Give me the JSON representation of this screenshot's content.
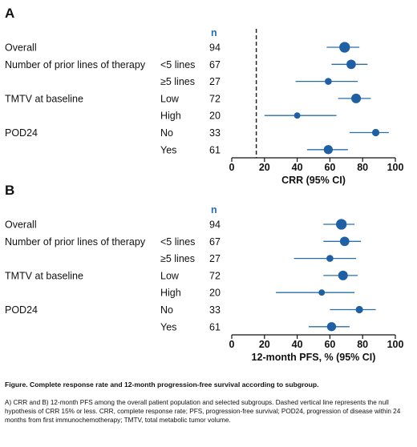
{
  "chart_data": [
    {
      "type": "forest",
      "panel": "A",
      "n_header": "n",
      "rows": [
        {
          "label": "Overall",
          "sublabel": "",
          "n": "94",
          "estimate": 69,
          "lo": 58,
          "hi": 78
        },
        {
          "label": "Number of prior lines of therapy",
          "sublabel": "<5 lines",
          "n": "67",
          "estimate": 73,
          "lo": 61,
          "hi": 83
        },
        {
          "label": "",
          "sublabel": "≥5 lines",
          "n": "27",
          "estimate": 59,
          "lo": 39,
          "hi": 77
        },
        {
          "label": "TMTV at baseline",
          "sublabel": "Low",
          "n": "72",
          "estimate": 76,
          "lo": 65,
          "hi": 85
        },
        {
          "label": "",
          "sublabel": "High",
          "n": "20",
          "estimate": 40,
          "lo": 20,
          "hi": 64
        },
        {
          "label": "POD24",
          "sublabel": "No",
          "n": "33",
          "estimate": 88,
          "lo": 72,
          "hi": 96
        },
        {
          "label": "",
          "sublabel": "Yes",
          "n": "61",
          "estimate": 59,
          "lo": 46,
          "hi": 71
        }
      ],
      "xlim": [
        0,
        100
      ],
      "xticks": [
        "0",
        "20",
        "40",
        "60",
        "80",
        "100"
      ],
      "xlabel": "CRR (95% CI)",
      "reference_line": 15
    },
    {
      "type": "forest",
      "panel": "B",
      "n_header": "n",
      "rows": [
        {
          "label": "Overall",
          "sublabel": "",
          "n": "94",
          "estimate": 67,
          "lo": 56,
          "hi": 75
        },
        {
          "label": "Number of prior lines of therapy",
          "sublabel": "<5 lines",
          "n": "67",
          "estimate": 69,
          "lo": 56,
          "hi": 79
        },
        {
          "label": "",
          "sublabel": "≥5 lines",
          "n": "27",
          "estimate": 60,
          "lo": 38,
          "hi": 76
        },
        {
          "label": "TMTV at baseline",
          "sublabel": "Low",
          "n": "72",
          "estimate": 68,
          "lo": 56,
          "hi": 77
        },
        {
          "label": "",
          "sublabel": "High",
          "n": "20",
          "estimate": 55,
          "lo": 27,
          "hi": 75
        },
        {
          "label": "POD24",
          "sublabel": "No",
          "n": "33",
          "estimate": 78,
          "lo": 60,
          "hi": 88
        },
        {
          "label": "",
          "sublabel": "Yes",
          "n": "61",
          "estimate": 61,
          "lo": 47,
          "hi": 72
        }
      ],
      "xlim": [
        0,
        100
      ],
      "xticks": [
        "0",
        "20",
        "40",
        "60",
        "80",
        "100"
      ],
      "xlabel": "12-month PFS, % (95% CI)"
    }
  ],
  "colors": {
    "point": "#1f5fa3",
    "ci": "#2a6fa8",
    "n_header": "#2a6fa8"
  },
  "caption": {
    "title": "Figure. Complete response rate and 12-month progression-free survival according to subgroup.",
    "text": "A) CRR and B) 12-month PFS among the overall patient population and selected subgroups. Dashed vertical line represents the null hypothesis of CRR 15% or less. CRR, complete response rate; PFS, progression-free survival; POD24, progression of disease within 24 months from first immunochemotherapy; TMTV, total metabolic tumor volume."
  }
}
